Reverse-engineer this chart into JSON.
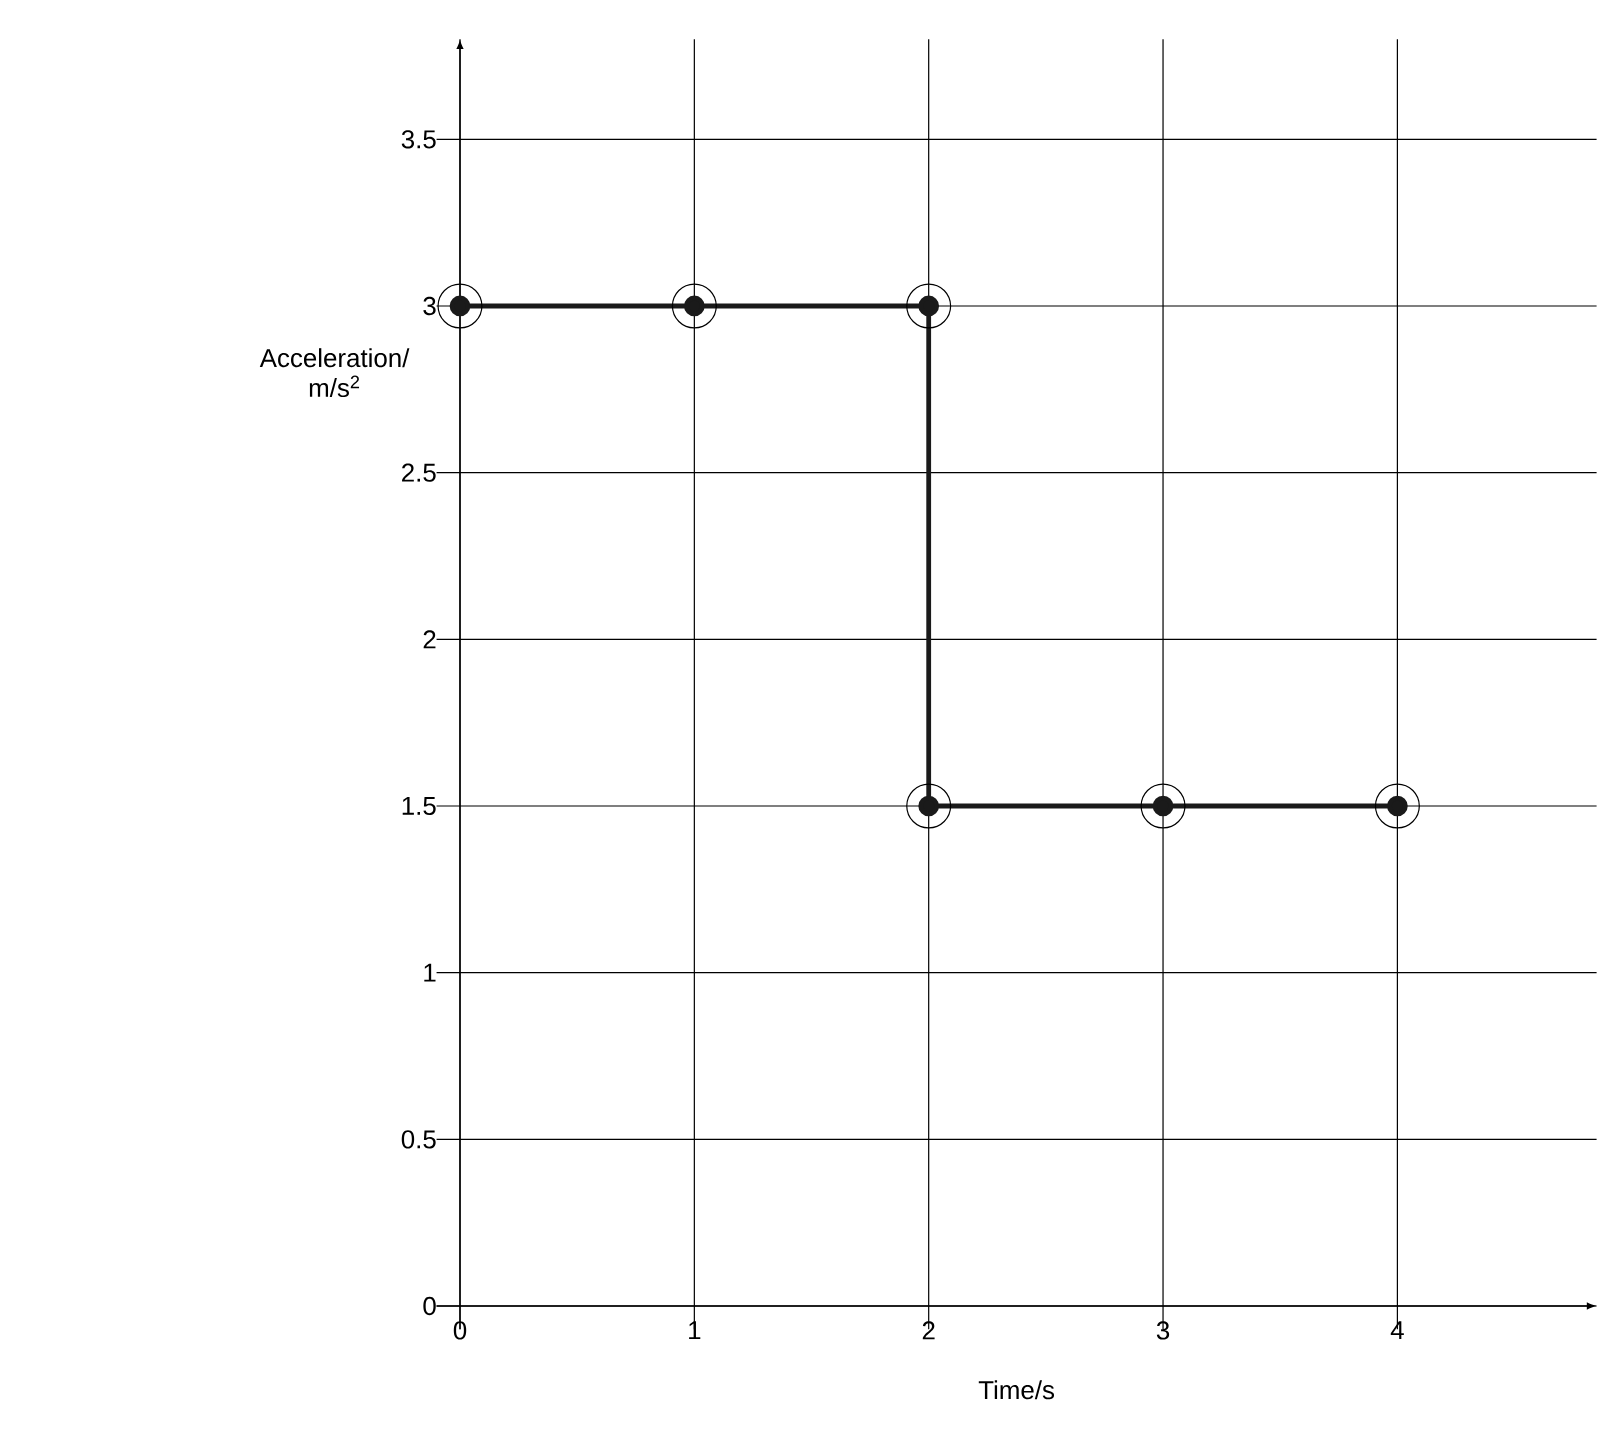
{
  "chart_data": {
    "type": "line",
    "xlabel": "Time/s",
    "ylabel": "Acceleration/ m/s$^{2}$",
    "x": [
      0,
      1,
      2,
      2,
      3,
      4
    ],
    "series": [
      {
        "color": "#1a1a1a",
        "values": [
          3,
          3,
          3,
          1.5,
          1.5,
          1.5
        ]
      }
    ],
    "xlim": [
      -0.1,
      4.85
    ],
    "ylim": [
      -0.07,
      3.8
    ],
    "xticks": [
      0,
      1,
      2,
      3,
      4
    ],
    "yticks": [
      0,
      0.5,
      1,
      1.5,
      2,
      2.5,
      3,
      3.5
    ],
    "grid": true,
    "marker": "circle",
    "line_style": "solid"
  }
}
